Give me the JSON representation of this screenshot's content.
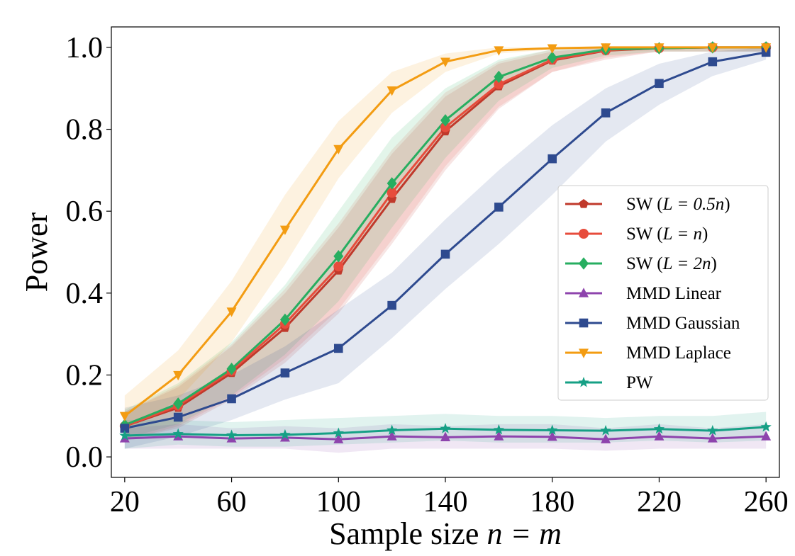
{
  "chart_data": {
    "type": "line",
    "title": "",
    "xlabel_prefix": "Sample size ",
    "xlabel_math": "n = m",
    "ylabel": "Power",
    "x": [
      20,
      40,
      60,
      80,
      100,
      120,
      140,
      160,
      180,
      200,
      220,
      240,
      260
    ],
    "xticks": [
      "20",
      "60",
      "100",
      "140",
      "180",
      "220",
      "260"
    ],
    "xtick_values": [
      20,
      60,
      100,
      140,
      180,
      220,
      260
    ],
    "yticks": [
      "0.0",
      "0.2",
      "0.4",
      "0.6",
      "0.8",
      "1.0"
    ],
    "ytick_values": [
      0,
      0.2,
      0.4,
      0.6,
      0.8,
      1.0
    ],
    "xlim": [
      15,
      265
    ],
    "ylim": [
      -0.05,
      1.05
    ],
    "grid": false,
    "legend_position": "center-right",
    "series": [
      {
        "name": "SW (L=0.5n)",
        "legend_plain": "SW (",
        "legend_math": "L = 0.5n",
        "legend_close": ")",
        "color": "#c0392b",
        "marker": "pentagon",
        "values": [
          0.075,
          0.12,
          0.205,
          0.315,
          0.455,
          0.63,
          0.795,
          0.905,
          0.968,
          0.992,
          0.998,
          1.0,
          1.0
        ],
        "lower": [
          0.04,
          0.07,
          0.14,
          0.23,
          0.35,
          0.52,
          0.7,
          0.85,
          0.94,
          0.97,
          0.99,
          0.99,
          0.99
        ],
        "upper": [
          0.11,
          0.17,
          0.27,
          0.4,
          0.56,
          0.74,
          0.88,
          0.96,
          0.99,
          1.0,
          1.0,
          1.0,
          1.0
        ]
      },
      {
        "name": "SW (L=n)",
        "legend_plain": "SW (",
        "legend_math": "L = n",
        "legend_close": ")",
        "color": "#e74c3c",
        "marker": "circle",
        "values": [
          0.075,
          0.125,
          0.21,
          0.325,
          0.465,
          0.645,
          0.805,
          0.91,
          0.97,
          0.993,
          0.998,
          1.0,
          1.0
        ],
        "lower": [
          0.04,
          0.075,
          0.145,
          0.24,
          0.36,
          0.53,
          0.71,
          0.855,
          0.94,
          0.975,
          0.99,
          0.99,
          0.99
        ],
        "upper": [
          0.11,
          0.175,
          0.275,
          0.41,
          0.57,
          0.75,
          0.89,
          0.965,
          0.995,
          1.0,
          1.0,
          1.0,
          1.0
        ]
      },
      {
        "name": "SW (L=2n)",
        "legend_plain": "SW (",
        "legend_math": "L = 2n",
        "legend_close": ")",
        "color": "#27ae60",
        "marker": "diamond",
        "values": [
          0.078,
          0.13,
          0.215,
          0.335,
          0.49,
          0.668,
          0.822,
          0.928,
          0.975,
          0.995,
          0.998,
          1.0,
          1.0
        ],
        "lower": [
          0.045,
          0.08,
          0.15,
          0.25,
          0.38,
          0.56,
          0.73,
          0.87,
          0.95,
          0.98,
          0.99,
          0.99,
          0.99
        ],
        "upper": [
          0.115,
          0.18,
          0.28,
          0.42,
          0.6,
          0.78,
          0.9,
          0.97,
          0.995,
          1.0,
          1.0,
          1.0,
          1.0
        ]
      },
      {
        "name": "MMD Linear",
        "legend_plain": "MMD Linear",
        "legend_math": "",
        "legend_close": "",
        "color": "#8e44ad",
        "marker": "triangle-up",
        "values": [
          0.045,
          0.05,
          0.045,
          0.047,
          0.043,
          0.05,
          0.048,
          0.05,
          0.049,
          0.043,
          0.05,
          0.045,
          0.05
        ],
        "lower": [
          0.02,
          0.02,
          0.02,
          0.02,
          0.01,
          0.02,
          0.02,
          0.02,
          0.02,
          0.015,
          0.02,
          0.02,
          0.02
        ],
        "upper": [
          0.07,
          0.08,
          0.07,
          0.075,
          0.07,
          0.08,
          0.075,
          0.08,
          0.08,
          0.07,
          0.08,
          0.07,
          0.08
        ]
      },
      {
        "name": "MMD Gaussian",
        "legend_plain": "MMD Gaussian",
        "legend_math": "",
        "legend_close": "",
        "color": "#2e4a8f",
        "marker": "square",
        "values": [
          0.07,
          0.097,
          0.142,
          0.205,
          0.265,
          0.37,
          0.495,
          0.61,
          0.728,
          0.84,
          0.912,
          0.965,
          0.988
        ],
        "lower": [
          0.02,
          0.05,
          0.09,
          0.14,
          0.18,
          0.29,
          0.41,
          0.52,
          0.64,
          0.77,
          0.86,
          0.93,
          0.97
        ],
        "upper": [
          0.12,
          0.15,
          0.2,
          0.27,
          0.36,
          0.45,
          0.58,
          0.7,
          0.81,
          0.9,
          0.96,
          0.99,
          1.0
        ]
      },
      {
        "name": "MMD Laplace",
        "legend_plain": "MMD Laplace",
        "legend_math": "",
        "legend_close": "",
        "color": "#f39c12",
        "marker": "triangle-down",
        "values": [
          0.1,
          0.2,
          0.355,
          0.555,
          0.752,
          0.895,
          0.965,
          0.993,
          0.998,
          1.0,
          1.0,
          1.0,
          1.0
        ],
        "lower": [
          0.06,
          0.14,
          0.28,
          0.47,
          0.68,
          0.84,
          0.94,
          0.985,
          0.995,
          1.0,
          1.0,
          1.0,
          1.0
        ],
        "upper": [
          0.15,
          0.26,
          0.43,
          0.64,
          0.82,
          0.94,
          0.985,
          1.0,
          1.0,
          1.0,
          1.0,
          1.0,
          1.0
        ]
      },
      {
        "name": "PW",
        "legend_plain": "PW",
        "legend_math": "",
        "legend_close": "",
        "color": "#16a085",
        "marker": "star",
        "values": [
          0.052,
          0.056,
          0.053,
          0.054,
          0.058,
          0.065,
          0.069,
          0.066,
          0.065,
          0.064,
          0.068,
          0.064,
          0.073
        ],
        "lower": [
          0.02,
          0.03,
          0.025,
          0.025,
          0.03,
          0.035,
          0.04,
          0.035,
          0.035,
          0.035,
          0.04,
          0.035,
          0.04
        ],
        "upper": [
          0.09,
          0.09,
          0.085,
          0.09,
          0.095,
          0.1,
          0.105,
          0.1,
          0.1,
          0.095,
          0.1,
          0.1,
          0.11
        ]
      }
    ]
  }
}
